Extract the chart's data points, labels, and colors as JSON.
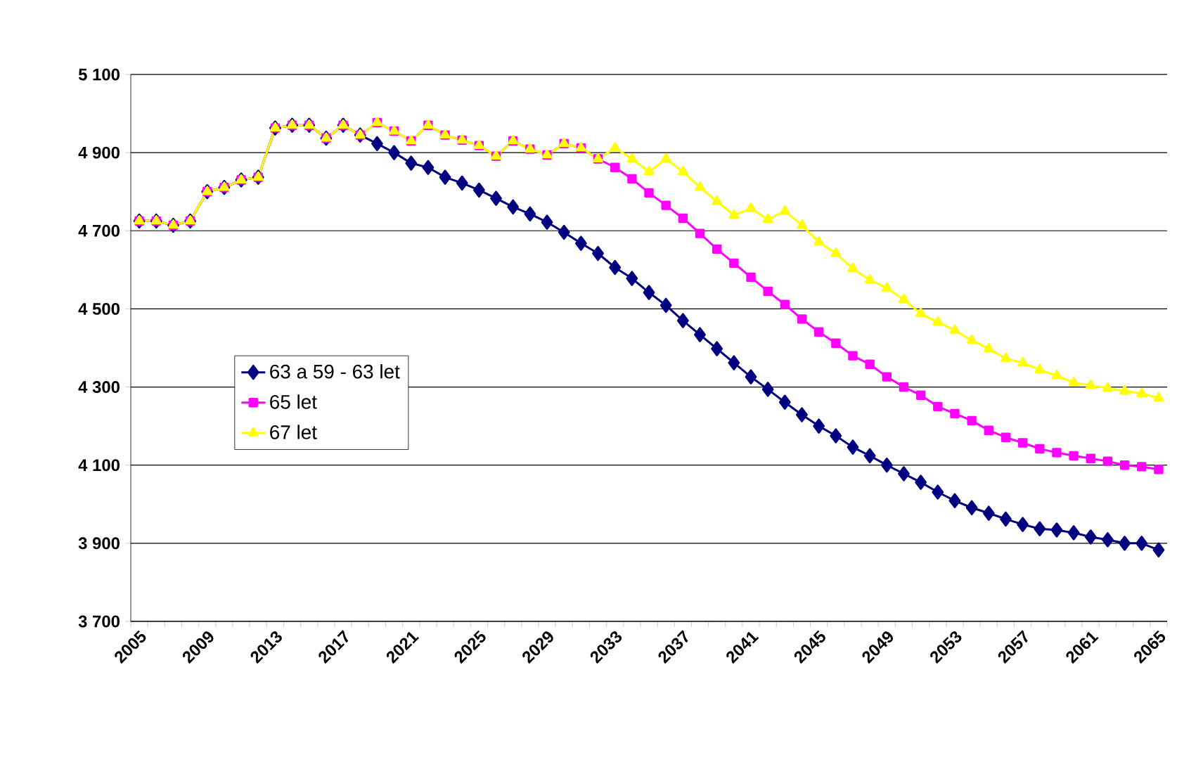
{
  "chart_data": {
    "type": "line",
    "categories": [
      "2005",
      null,
      null,
      null,
      "2009",
      null,
      null,
      null,
      "2013",
      null,
      null,
      null,
      "2017",
      null,
      null,
      null,
      "2021",
      null,
      null,
      null,
      "2025",
      null,
      null,
      null,
      "2029",
      null,
      null,
      null,
      "2033",
      null,
      null,
      null,
      "2037",
      null,
      null,
      null,
      "2041",
      null,
      null,
      null,
      "2045",
      null,
      null,
      null,
      "2049",
      null,
      null,
      null,
      "2053",
      null,
      null,
      null,
      "2057",
      null,
      null,
      null,
      "2061",
      null,
      null,
      null,
      "2065"
    ],
    "series": [
      {
        "name": "63 a 59 - 63 let",
        "color": "#000080",
        "marker": "diamond",
        "values": [
          4725,
          4725,
          4714,
          4725,
          4800,
          4811,
          4830,
          4837,
          4963,
          4970,
          4970,
          4937,
          4970,
          4945,
          4923,
          4900,
          4873,
          4862,
          4837,
          4822,
          4804,
          4783,
          4761,
          4743,
          4722,
          4696,
          4668,
          4642,
          4606,
          4578,
          4542,
          4509,
          4470,
          4434,
          4398,
          4362,
          4326,
          4294,
          4261,
          4229,
          4200,
          4175,
          4146,
          4124,
          4100,
          4078,
          4056,
          4031,
          4009,
          3991,
          3977,
          3962,
          3948,
          3937,
          3934,
          3927,
          3916,
          3909,
          3900,
          3900,
          3883
        ]
      },
      {
        "name": "65 let",
        "color": "#ff00ff",
        "marker": "square",
        "values": [
          4725,
          4725,
          4714,
          4725,
          4800,
          4811,
          4830,
          4837,
          4963,
          4970,
          4970,
          4937,
          4970,
          4945,
          4977,
          4955,
          4930,
          4970,
          4945,
          4932,
          4918,
          4891,
          4930,
          4909,
          4894,
          4923,
          4912,
          4884,
          4862,
          4833,
          4797,
          4765,
          4732,
          4693,
          4653,
          4617,
          4581,
          4545,
          4511,
          4474,
          4441,
          4412,
          4380,
          4358,
          4326,
          4300,
          4279,
          4250,
          4232,
          4214,
          4189,
          4171,
          4157,
          4142,
          4132,
          4124,
          4117,
          4110,
          4100,
          4096,
          4089
        ]
      },
      {
        "name": "67 let",
        "color": "#ffff00",
        "marker": "triangle",
        "values": [
          4725,
          4725,
          4714,
          4725,
          4800,
          4811,
          4830,
          4837,
          4963,
          4970,
          4970,
          4937,
          4970,
          4945,
          4977,
          4955,
          4930,
          4970,
          4945,
          4932,
          4918,
          4891,
          4930,
          4909,
          4894,
          4923,
          4912,
          4884,
          4912,
          4884,
          4851,
          4884,
          4851,
          4811,
          4775,
          4740,
          4757,
          4729,
          4750,
          4714,
          4671,
          4642,
          4603,
          4574,
          4553,
          4524,
          4488,
          4466,
          4445,
          4419,
          4398,
          4373,
          4362,
          4344,
          4329,
          4311,
          4304,
          4297,
          4290,
          4283,
          4272
        ]
      }
    ],
    "ylim": [
      3700,
      5100
    ],
    "yticks": [
      {
        "value": 3700,
        "label": "3 700"
      },
      {
        "value": 3900,
        "label": "3 900"
      },
      {
        "value": 4100,
        "label": "4 100"
      },
      {
        "value": 4300,
        "label": "4 300"
      },
      {
        "value": 4500,
        "label": "4 500"
      },
      {
        "value": 4700,
        "label": "4 700"
      },
      {
        "value": 4900,
        "label": "4 900"
      },
      {
        "value": 5100,
        "label": "5 100"
      }
    ],
    "grid": "y",
    "legend": "left",
    "line_style": "solid"
  }
}
